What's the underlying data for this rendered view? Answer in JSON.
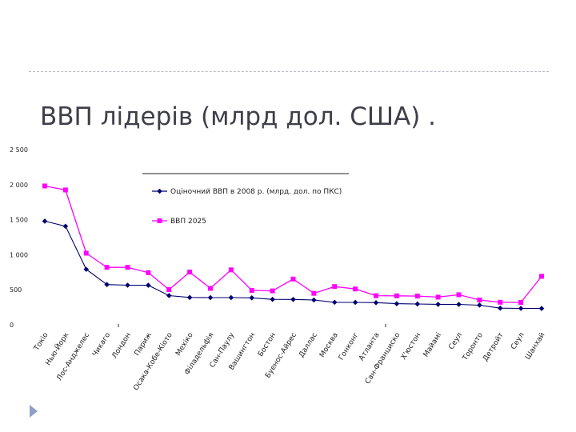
{
  "slide": {
    "title": "ВВП лідерів (млрд дол. США) ."
  },
  "chart_data": {
    "type": "line",
    "title": "",
    "xlabel": "",
    "ylabel": "",
    "ylim": [
      0,
      2500
    ],
    "yticks": [
      0,
      500,
      1000,
      1500,
      2000,
      2500
    ],
    "ytick_labels": [
      "0",
      "500",
      "1 000",
      "1 500",
      "2 000",
      "2 500"
    ],
    "grid": false,
    "legend_position": "top-right",
    "categories": [
      "Токіо",
      "Нью-Йорк",
      "Лос-Анджелес",
      "Чикаго",
      "Лондон",
      "Париж",
      "Осака-Кобе-Кіото",
      "Мехіко",
      "Філадельфія",
      "Сан-Паулу",
      "Вашингтон",
      "Бостон",
      "Буенос-Айрес",
      "Даллас",
      "Москва",
      "Гонконг",
      "Атланта",
      "Сан-Франциско",
      "Х'юстон",
      "Майамі",
      "Сеул",
      "Торонто",
      "Детройт",
      "Сеул",
      "Шанхай"
    ],
    "series": [
      {
        "name": "Оціночний ВВП в 2008 р. (млрд. дол. по ПКС)",
        "color": "#00006e",
        "marker": "diamond",
        "values": [
          1479,
          1406,
          792,
          574,
          565,
          564,
          417,
          390,
          388,
          388,
          385,
          363,
          362,
          354,
          321,
          320,
          316,
          301,
          297,
          292,
          291,
          280,
          238,
          234,
          233
        ]
      },
      {
        "name": "ВВП 2025",
        "color": "#ff00ff",
        "marker": "square",
        "values": [
          1981,
          1924,
          1022,
          820,
          820,
          744,
          502,
          752,
          520,
          784,
          491,
          484,
          653,
          449,
          546,
          511,
          415,
          413,
          410,
          395,
          429,
          354,
          322,
          320,
          692
        ]
      }
    ]
  }
}
